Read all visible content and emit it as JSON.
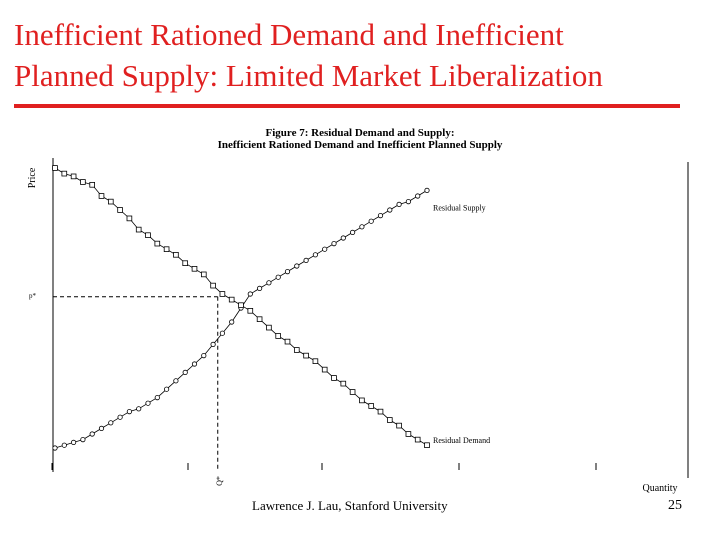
{
  "slide": {
    "title_line1": "Inefficient Rationed Demand and Inefficient",
    "title_line2": "Planned Supply: Limited Market Liberalization",
    "credit": "Lawrence J. Lau, Stanford University",
    "page_number": "25",
    "accent_color": "#e02020"
  },
  "chart_data": {
    "type": "line",
    "title": "Figure 7: Residual Demand and Supply:",
    "subtitle": "Inefficient Rationed Demand and Inefficient Planned Supply",
    "xlabel": "Quantity",
    "ylabel": "Price",
    "equilibrium_price_label": "p*",
    "equilibrium_quantity_label": "Q*",
    "xlim": [
      0,
      100
    ],
    "ylim": [
      0,
      100
    ],
    "equilibrium": {
      "x": 35,
      "y": 54
    },
    "grid": false,
    "series": [
      {
        "name": "Residual Supply",
        "marker": "circle",
        "x": [
          0,
          2,
          4,
          6,
          8,
          10,
          12,
          14,
          16,
          18,
          20,
          22,
          24,
          26,
          28,
          30,
          32,
          34,
          36,
          38,
          40,
          42,
          44,
          46,
          48,
          50,
          52,
          54,
          56,
          58,
          60,
          62,
          64,
          66,
          68,
          70,
          72,
          74,
          76,
          78,
          80
        ],
        "y": [
          0,
          1,
          2,
          3,
          5,
          7,
          9,
          11,
          13,
          14,
          16,
          18,
          21,
          24,
          27,
          30,
          33,
          37,
          41,
          45,
          50,
          55,
          57,
          59,
          61,
          63,
          65,
          67,
          69,
          71,
          73,
          75,
          77,
          79,
          81,
          83,
          85,
          87,
          88,
          90,
          92
        ]
      },
      {
        "name": "Residual Demand",
        "marker": "square",
        "x": [
          0,
          2,
          4,
          6,
          8,
          10,
          12,
          14,
          16,
          18,
          20,
          22,
          24,
          26,
          28,
          30,
          32,
          34,
          36,
          38,
          40,
          42,
          44,
          46,
          48,
          50,
          52,
          54,
          56,
          58,
          60,
          62,
          64,
          66,
          68,
          70,
          72,
          74,
          76,
          78,
          80
        ],
        "y": [
          100,
          98,
          97,
          95,
          94,
          90,
          88,
          85,
          82,
          78,
          76,
          73,
          71,
          69,
          66,
          64,
          62,
          58,
          55,
          53,
          51,
          49,
          46,
          43,
          40,
          38,
          35,
          33,
          31,
          28,
          25,
          23,
          20,
          17,
          15,
          13,
          10,
          8,
          5,
          3,
          1
        ]
      }
    ]
  }
}
